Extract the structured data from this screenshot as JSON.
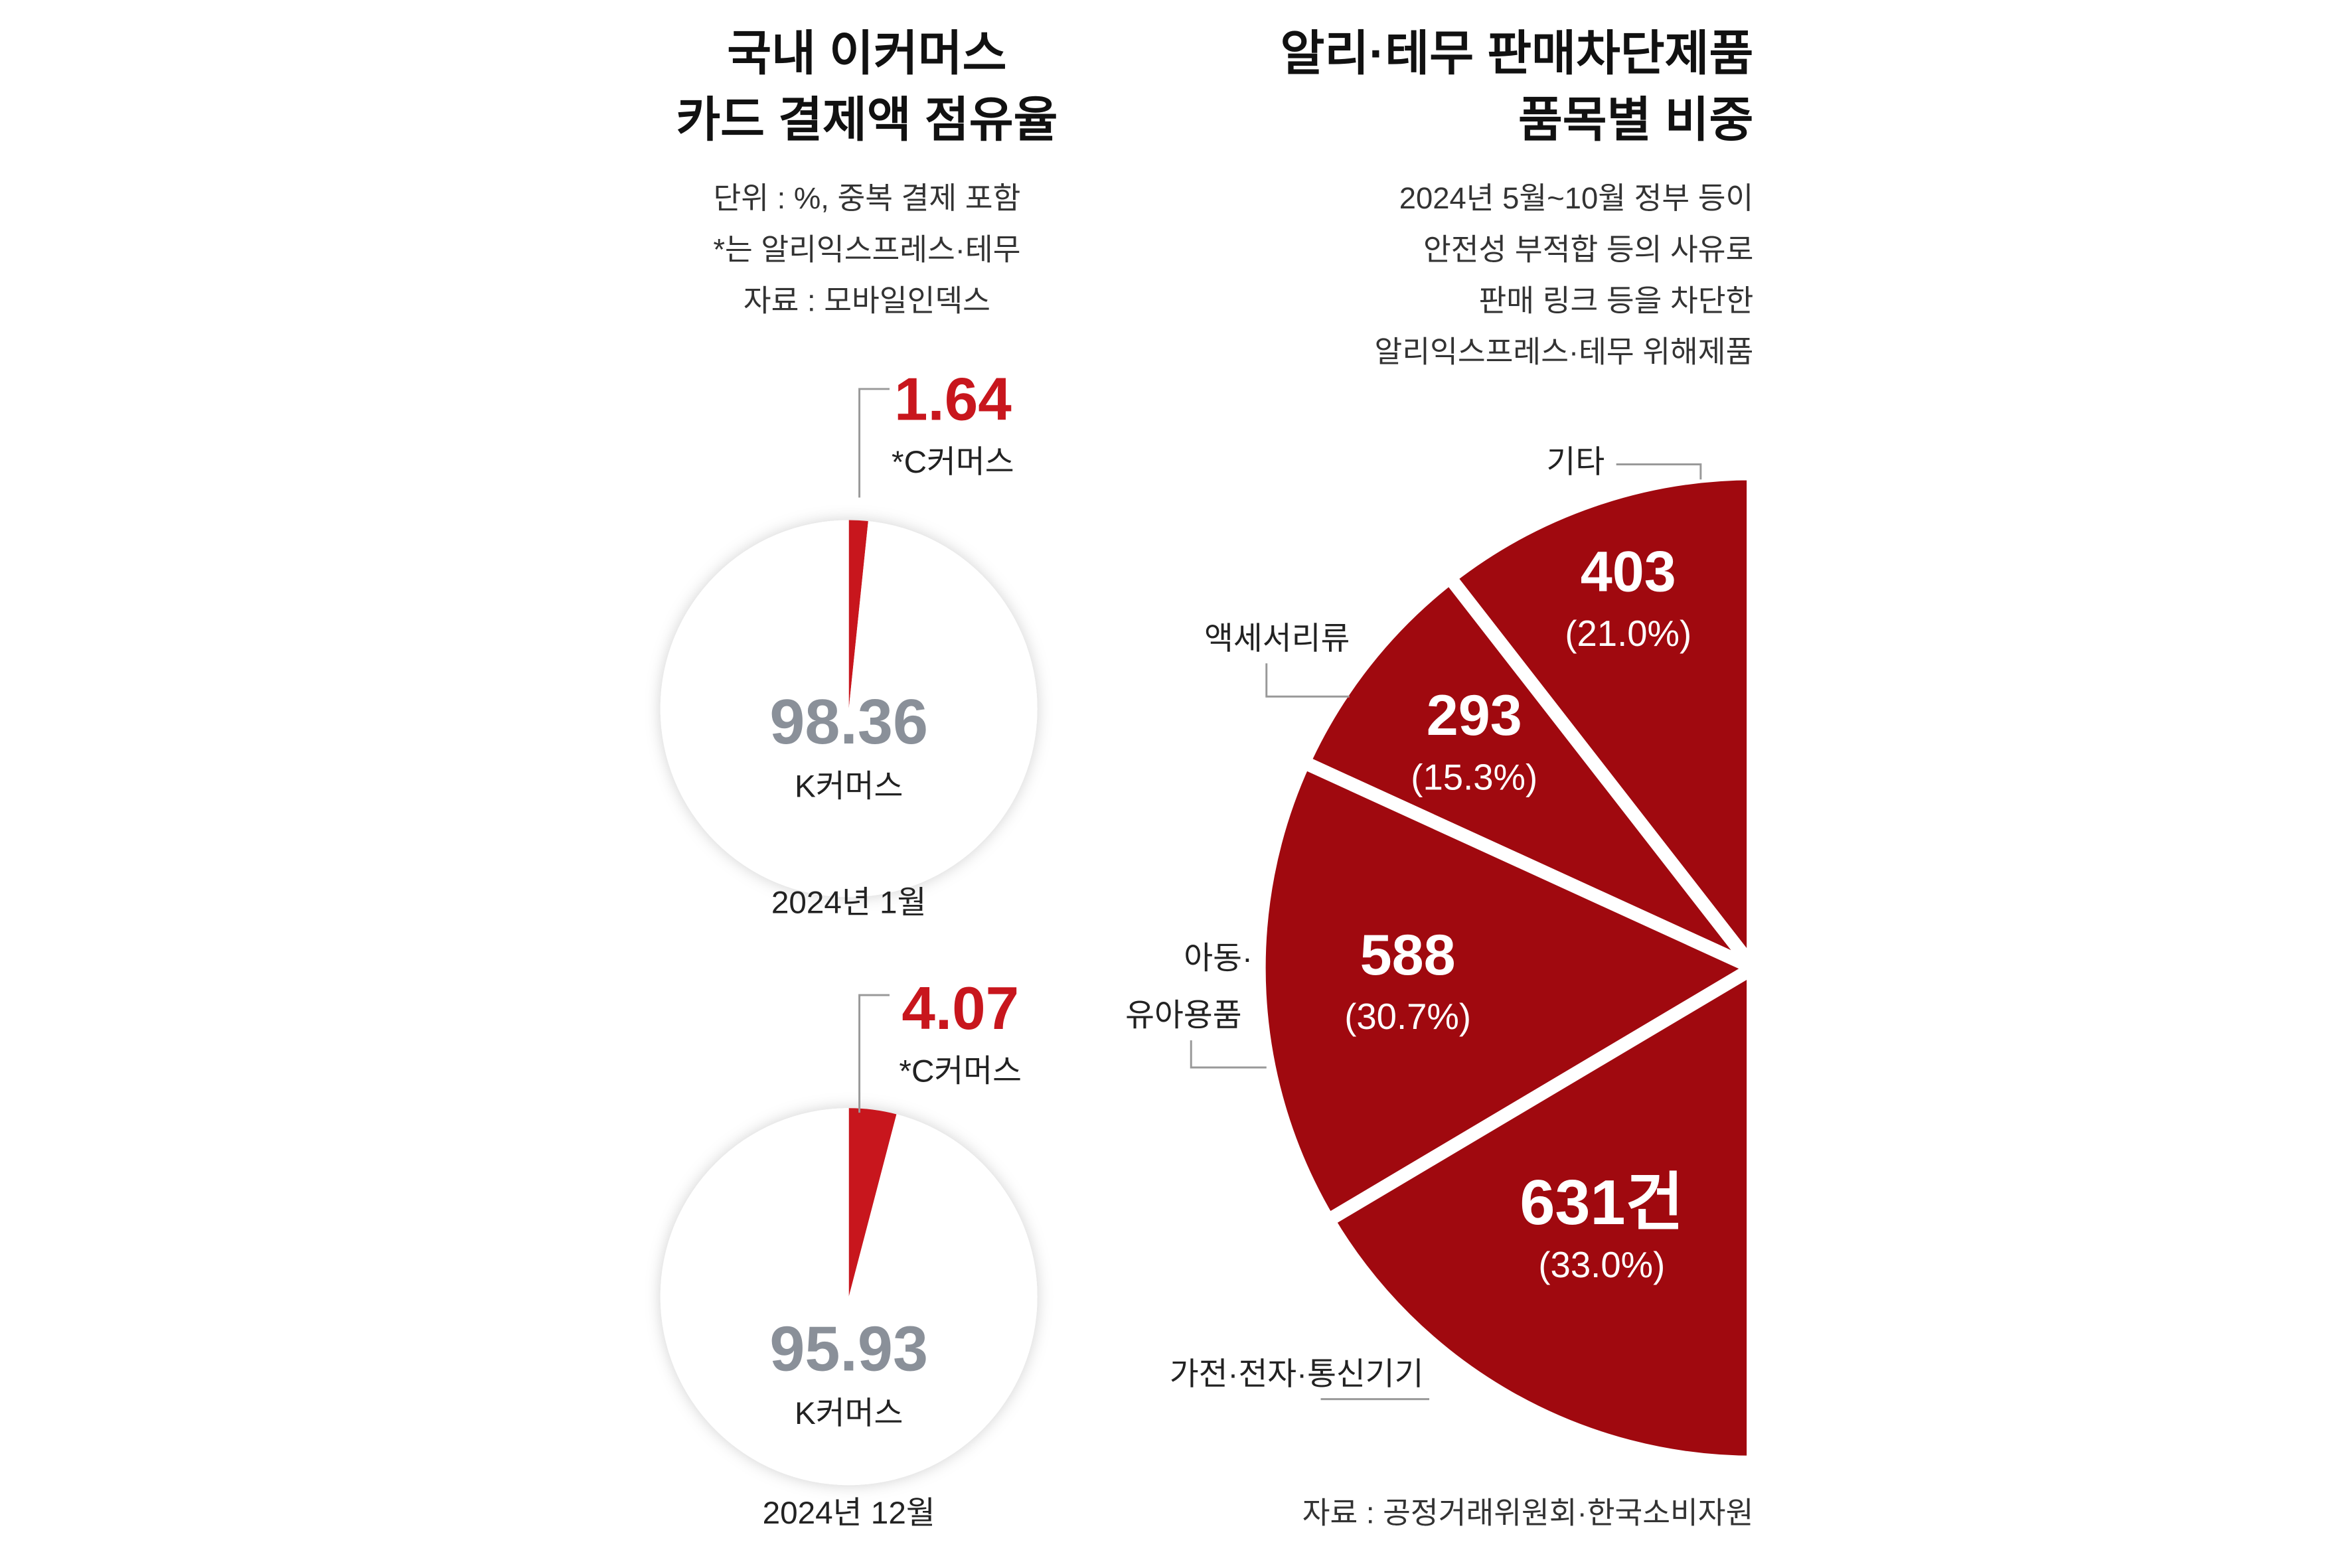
{
  "chart_data": [
    {
      "type": "pie",
      "title": [
        "국내 이커머스",
        "카드 결제액 점유율"
      ],
      "subtitle": [
        "단위 : %, 중복 결제 포함",
        "*는 알리익스프레스·테무",
        "자료 : 모바일인덱스"
      ],
      "label": "2024년 1월",
      "categories": [
        "*C커머스",
        "K커머스"
      ],
      "values": [
        1.64,
        98.36
      ],
      "colors": [
        "#c8161d",
        "#ffffff"
      ]
    },
    {
      "type": "pie",
      "label": "2024년 12월",
      "categories": [
        "*C커머스",
        "K커머스"
      ],
      "values": [
        4.07,
        95.93
      ],
      "colors": [
        "#c8161d",
        "#ffffff"
      ]
    },
    {
      "type": "halfpie",
      "title": [
        "알리·테무 판매차단제품",
        "품목별 비중"
      ],
      "subtitle": [
        "2024년 5월~10월 정부 등이",
        "안전성 부적합 등의 사유로",
        "판매 링크 등을 차단한",
        "알리익스프레스·테무 위해제품"
      ],
      "source": "자료 : 공정거래위원회·한국소비자원",
      "categories": [
        "기타",
        "액세서리류",
        [
          "아동·",
          "유아용품"
        ],
        "가전·전자·통신기기"
      ],
      "values": [
        403,
        293,
        588,
        631
      ],
      "value_labels": [
        "403",
        "293",
        "588",
        "631건"
      ],
      "percent_values": [
        21.0,
        15.3,
        30.7,
        33.0
      ],
      "percent_labels": [
        "(21.0%)",
        "(15.3%)",
        "(30.7%)",
        "(33.0%)"
      ],
      "color": "#a0090f"
    }
  ]
}
